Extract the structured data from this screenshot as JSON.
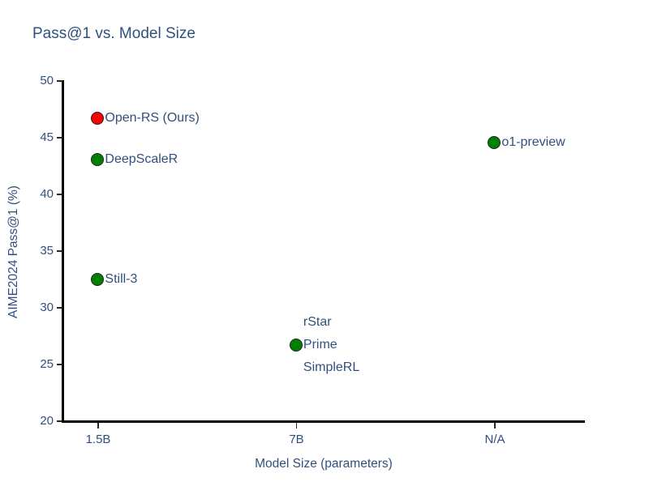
{
  "chart_data": {
    "type": "scatter",
    "title": "Pass@1 vs. Model Size",
    "xlabel": "Model Size (parameters)",
    "ylabel": "AIME2024 Pass@1 (%)",
    "x_categories": [
      "1.5B",
      "7B",
      "N/A"
    ],
    "y_ticks": [
      20,
      25,
      30,
      35,
      40,
      45,
      50
    ],
    "ylim": [
      20,
      50
    ],
    "grid": false,
    "legend": "none",
    "colors": {
      "highlight_marker": "#ff0000",
      "default_marker": "#008000",
      "marker_edge": "#222222",
      "text": "#31507d",
      "axis": "#000000"
    },
    "points": [
      {
        "label": "Open-RS (Ours)",
        "x": "1.5B",
        "y": 46.7,
        "color": "#ff0000",
        "marker": true
      },
      {
        "label": "DeepScaleR",
        "x": "1.5B",
        "y": 43.1,
        "color": "#008000",
        "marker": true
      },
      {
        "label": "Still-3",
        "x": "1.5B",
        "y": 32.5,
        "color": "#008000",
        "marker": true
      },
      {
        "label": "rStar",
        "x": "7B",
        "y": 28.7,
        "color": "#008000",
        "marker": false
      },
      {
        "label": "Prime",
        "x": "7B",
        "y": 26.7,
        "color": "#008000",
        "marker": true
      },
      {
        "label": "SimpleRL",
        "x": "7B",
        "y": 24.7,
        "color": "#008000",
        "marker": false
      },
      {
        "label": "o1-preview",
        "x": "N/A",
        "y": 44.6,
        "color": "#008000",
        "marker": true
      }
    ]
  }
}
